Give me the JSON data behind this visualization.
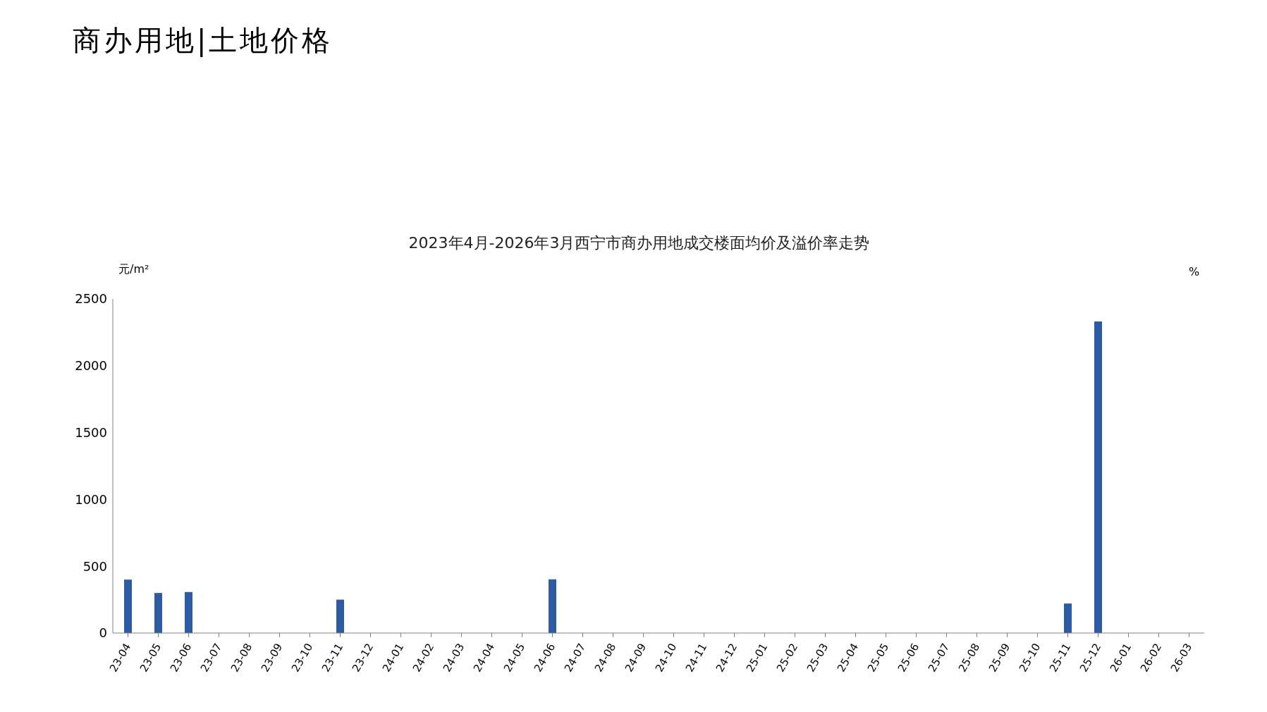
{
  "chart_data": {
    "type": "bar",
    "title": "商办用地|土地价格",
    "subtitle": "2023年4月-2026年3月西宁市商办用地成交楼面均价及溢价率走势",
    "ylabel": "元/m²",
    "y2label": "%",
    "categories": [
      "23-04",
      "23-05",
      "23-06",
      "23-07",
      "23-08",
      "23-09",
      "23-10",
      "23-11",
      "23-12",
      "24-01",
      "24-02",
      "24-03",
      "24-04",
      "24-05",
      "24-06",
      "24-07",
      "24-08",
      "24-09",
      "24-10",
      "24-11",
      "24-12",
      "25-01",
      "25-02",
      "25-03",
      "25-04",
      "25-05",
      "25-06",
      "25-07",
      "25-08",
      "25-09",
      "25-10",
      "25-11",
      "25-12",
      "26-01",
      "26-02",
      "26-03"
    ],
    "values": [
      400,
      300,
      307,
      null,
      null,
      null,
      null,
      250,
      null,
      null,
      null,
      null,
      null,
      null,
      402,
      null,
      null,
      null,
      null,
      null,
      null,
      null,
      null,
      null,
      null,
      null,
      null,
      null,
      null,
      null,
      null,
      221,
      2331,
      null,
      null,
      null
    ],
    "color": "#2e5ba6",
    "ylim": [
      0,
      2500
    ],
    "yticks": [
      0,
      500,
      1000,
      1500,
      2000,
      2500
    ],
    "grid": false,
    "legend": false
  }
}
